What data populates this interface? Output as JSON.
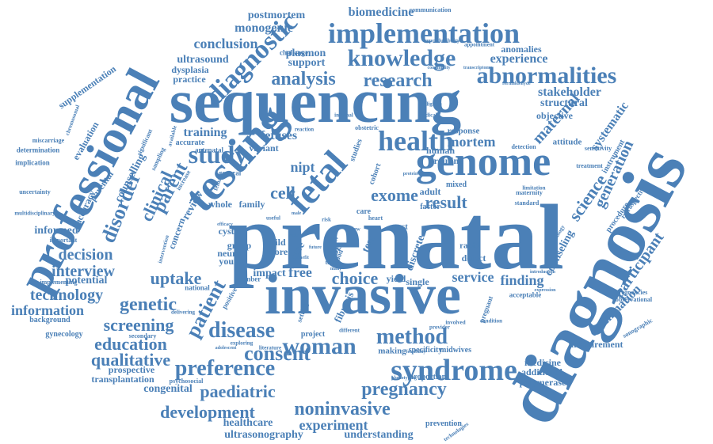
{
  "color": "#4b80b7",
  "words": [
    {
      "text": "prenatal",
      "weight": 1.0,
      "orientation": "horizontal"
    },
    {
      "text": "diagnosis",
      "weight": 0.95,
      "orientation": "rotated"
    },
    {
      "text": "sequencing",
      "weight": 0.72,
      "orientation": "horizontal"
    },
    {
      "text": "invasive",
      "weight": 0.65,
      "orientation": "horizontal"
    },
    {
      "text": "professional",
      "weight": 0.6,
      "orientation": "rotated"
    },
    {
      "text": "testing",
      "weight": 0.48,
      "orientation": "rotated"
    },
    {
      "text": "genome",
      "weight": 0.44,
      "orientation": "horizontal"
    },
    {
      "text": "fetal",
      "weight": 0.4,
      "orientation": "rotated"
    },
    {
      "text": "implementation",
      "weight": 0.32,
      "orientation": "horizontal"
    },
    {
      "text": "syndrome",
      "weight": 0.32,
      "orientation": "horizontal"
    },
    {
      "text": "diagnostic",
      "weight": 0.3,
      "orientation": "rotated"
    },
    {
      "text": "health",
      "weight": 0.3,
      "orientation": "horizontal"
    },
    {
      "text": "abnormalities",
      "weight": 0.27,
      "orientation": "horizontal"
    },
    {
      "text": "knowledge",
      "weight": 0.27,
      "orientation": "horizontal"
    },
    {
      "text": "woman",
      "weight": 0.27,
      "orientation": "horizontal"
    },
    {
      "text": "study",
      "weight": 0.26,
      "orientation": "horizontal"
    },
    {
      "text": "preference",
      "weight": 0.26,
      "orientation": "horizontal"
    },
    {
      "text": "disease",
      "weight": 0.24,
      "orientation": "horizontal"
    },
    {
      "text": "method",
      "weight": 0.24,
      "orientation": "horizontal"
    },
    {
      "text": "consent",
      "weight": 0.24,
      "orientation": "horizontal"
    },
    {
      "text": "analysis",
      "weight": 0.24,
      "orientation": "horizontal"
    },
    {
      "text": "research",
      "weight": 0.22,
      "orientation": "horizontal"
    },
    {
      "text": "pregnancy",
      "weight": 0.22,
      "orientation": "horizontal"
    },
    {
      "text": "noninvasive",
      "weight": 0.22,
      "orientation": "horizontal"
    },
    {
      "text": "disorder",
      "weight": 0.22,
      "orientation": "rotated"
    },
    {
      "text": "patient",
      "weight": 0.22,
      "orientation": "rotated"
    },
    {
      "text": "screening",
      "weight": 0.21,
      "orientation": "horizontal"
    },
    {
      "text": "genetic",
      "weight": 0.21,
      "orientation": "horizontal"
    },
    {
      "text": "education",
      "weight": 0.19,
      "orientation": "horizontal"
    },
    {
      "text": "qualitative",
      "weight": 0.19,
      "orientation": "horizontal"
    },
    {
      "text": "development",
      "weight": 0.19,
      "orientation": "horizontal"
    },
    {
      "text": "paediatric",
      "weight": 0.19,
      "orientation": "horizontal"
    },
    {
      "text": "parent",
      "weight": 0.2,
      "orientation": "rotated"
    },
    {
      "text": "clinical",
      "weight": 0.18,
      "orientation": "rotated"
    },
    {
      "text": "maternal",
      "weight": 0.18,
      "orientation": "rotated"
    },
    {
      "text": "cell",
      "weight": 0.2,
      "orientation": "horizontal"
    },
    {
      "text": "result",
      "weight": 0.18,
      "orientation": "horizontal"
    },
    {
      "text": "exome",
      "weight": 0.18,
      "orientation": "horizontal"
    },
    {
      "text": "uptake",
      "weight": 0.17,
      "orientation": "horizontal"
    },
    {
      "text": "choice",
      "weight": 0.17,
      "orientation": "horizontal"
    },
    {
      "text": "science",
      "weight": 0.17,
      "orientation": "rotated"
    },
    {
      "text": "participant",
      "weight": 0.17,
      "orientation": "rotated"
    },
    {
      "text": "generation",
      "weight": 0.16,
      "orientation": "rotated"
    },
    {
      "text": "interview",
      "weight": 0.16,
      "orientation": "horizontal"
    },
    {
      "text": "decision",
      "weight": 0.16,
      "orientation": "horizontal"
    },
    {
      "text": "technology",
      "weight": 0.16,
      "orientation": "horizontal"
    },
    {
      "text": "information",
      "weight": 0.15,
      "orientation": "horizontal"
    },
    {
      "text": "experiment",
      "weight": 0.15,
      "orientation": "horizontal"
    },
    {
      "text": "service",
      "weight": 0.15,
      "orientation": "horizontal"
    },
    {
      "text": "mortem",
      "weight": 0.15,
      "orientation": "horizontal"
    },
    {
      "text": "stakeholder",
      "weight": 0.13,
      "orientation": "horizontal"
    },
    {
      "text": "conclusion",
      "weight": 0.14,
      "orientation": "horizontal"
    },
    {
      "text": "experience",
      "weight": 0.14,
      "orientation": "horizontal"
    },
    {
      "text": "biomedicine",
      "weight": 0.13,
      "orientation": "horizontal"
    },
    {
      "text": "monogenic",
      "weight": 0.13,
      "orientation": "horizontal"
    },
    {
      "text": "fetuses",
      "weight": 0.13,
      "orientation": "horizontal"
    },
    {
      "text": "nipt",
      "weight": 0.13,
      "orientation": "horizontal"
    },
    {
      "text": "free",
      "weight": 0.14,
      "orientation": "horizontal"
    },
    {
      "text": "finding",
      "weight": 0.13,
      "orientation": "horizontal"
    },
    {
      "text": "impact",
      "weight": 0.11,
      "orientation": "horizontal"
    },
    {
      "text": "examination",
      "weight": 0.12,
      "orientation": "rotated"
    },
    {
      "text": "systematic",
      "weight": 0.12,
      "orientation": "rotated"
    },
    {
      "text": "structural",
      "weight": 0.11,
      "orientation": "horizontal"
    },
    {
      "text": "training",
      "weight": 0.11,
      "orientation": "horizontal"
    },
    {
      "text": "understanding",
      "weight": 0.11,
      "orientation": "horizontal"
    },
    {
      "text": "congenital",
      "weight": 0.1,
      "orientation": "horizontal"
    },
    {
      "text": "healthcare",
      "weight": 0.1,
      "orientation": "horizontal"
    },
    {
      "text": "ultrasonography",
      "weight": 0.1,
      "orientation": "horizontal"
    },
    {
      "text": "postmortem",
      "weight": 0.1,
      "orientation": "horizontal"
    },
    {
      "text": "ultrasound",
      "weight": 0.1,
      "orientation": "horizontal"
    },
    {
      "text": "medicine",
      "weight": 0.09,
      "orientation": "horizontal"
    },
    {
      "text": "additional",
      "weight": 0.09,
      "orientation": "horizontal"
    },
    {
      "text": "polymerase",
      "weight": 0.09,
      "orientation": "horizontal"
    },
    {
      "text": "measurement",
      "weight": 0.09,
      "orientation": "horizontal"
    },
    {
      "text": "prospective",
      "weight": 0.08,
      "orientation": "horizontal"
    },
    {
      "text": "transplantation",
      "weight": 0.08,
      "orientation": "horizontal"
    },
    {
      "text": "gynecology",
      "weight": 0.07,
      "orientation": "horizontal"
    },
    {
      "text": "background",
      "weight": 0.07,
      "orientation": "horizontal"
    },
    {
      "text": "supplementation",
      "weight": 0.08,
      "orientation": "rotated"
    },
    {
      "text": "counselling",
      "weight": 0.09,
      "orientation": "rotated"
    },
    {
      "text": "counseling",
      "weight": 0.09,
      "orientation": "rotated"
    },
    {
      "text": "anomalies",
      "weight": 0.09,
      "orientation": "horizontal"
    },
    {
      "text": "plasmon",
      "weight": 0.09,
      "orientation": "horizontal"
    },
    {
      "text": "support",
      "weight": 0.09,
      "orientation": "horizontal"
    },
    {
      "text": "dysplasia",
      "weight": 0.08,
      "orientation": "horizontal"
    },
    {
      "text": "practice",
      "weight": 0.08,
      "orientation": "horizontal"
    },
    {
      "text": "informed",
      "weight": 0.1,
      "orientation": "horizontal"
    },
    {
      "text": "potential",
      "weight": 0.1,
      "orientation": "horizontal"
    },
    {
      "text": "accurate",
      "weight": 0.07,
      "orientation": "horizontal"
    },
    {
      "text": "variant",
      "weight": 0.08,
      "orientation": "horizontal"
    },
    {
      "text": "human",
      "weight": 0.08,
      "orientation": "horizontal"
    },
    {
      "text": "routine",
      "weight": 0.08,
      "orientation": "horizontal"
    },
    {
      "text": "objective",
      "weight": 0.08,
      "orientation": "horizontal"
    },
    {
      "text": "attitude",
      "weight": 0.07,
      "orientation": "horizontal"
    },
    {
      "text": "response",
      "weight": 0.07,
      "orientation": "horizontal"
    },
    {
      "text": "cystic",
      "weight": 0.08,
      "orientation": "horizontal"
    },
    {
      "text": "review",
      "weight": 0.09,
      "orientation": "rotated"
    },
    {
      "text": "whole",
      "weight": 0.08,
      "orientation": "horizontal"
    },
    {
      "text": "neural",
      "weight": 0.08,
      "orientation": "horizontal"
    },
    {
      "text": "young",
      "weight": 0.08,
      "orientation": "horizontal"
    },
    {
      "text": "discrete",
      "weight": 0.09,
      "orientation": "rotated"
    },
    {
      "text": "fibrosis",
      "weight": 0.08,
      "orientation": "rotated"
    },
    {
      "text": "making",
      "weight": 0.07,
      "orientation": "horizontal"
    },
    {
      "text": "specificity",
      "weight": 0.06,
      "orientation": "horizontal"
    },
    {
      "text": "midwives",
      "weight": 0.06,
      "orientation": "horizontal"
    },
    {
      "text": "proportion",
      "weight": 0.06,
      "orientation": "horizontal"
    },
    {
      "text": "prevention",
      "weight": 0.06,
      "orientation": "horizontal"
    },
    {
      "text": "project",
      "weight": 0.06,
      "orientation": "horizontal"
    },
    {
      "text": "single",
      "weight": 0.07,
      "orientation": "horizontal"
    },
    {
      "text": "adult",
      "weight": 0.08,
      "orientation": "horizontal"
    },
    {
      "text": "mixed",
      "weight": 0.06,
      "orientation": "horizontal"
    },
    {
      "text": "rapid",
      "weight": 0.06,
      "orientation": "horizontal"
    },
    {
      "text": "defect",
      "weight": 0.07,
      "orientation": "horizontal"
    },
    {
      "text": "post",
      "weight": 0.06,
      "orientation": "horizontal"
    },
    {
      "text": "factor",
      "weight": 0.06,
      "orientation": "horizontal"
    },
    {
      "text": "care",
      "weight": 0.06,
      "orientation": "horizontal"
    },
    {
      "text": "case",
      "weight": 0.08,
      "orientation": "rotated"
    },
    {
      "text": "tube",
      "weight": 0.08,
      "orientation": "rotated"
    },
    {
      "text": "child",
      "weight": 0.07,
      "orientation": "horizontal"
    },
    {
      "text": "more",
      "weight": 0.07,
      "orientation": "horizontal"
    },
    {
      "text": "group",
      "weight": 0.07,
      "orientation": "horizontal"
    },
    {
      "text": "family",
      "weight": 0.07,
      "orientation": "horizontal"
    },
    {
      "text": "yield",
      "weight": 0.07,
      "orientation": "horizontal"
    },
    {
      "text": "general",
      "weight": 0.06,
      "orientation": "horizontal"
    },
    {
      "text": "national",
      "weight": 0.05,
      "orientation": "horizontal"
    },
    {
      "text": "number",
      "weight": 0.05,
      "orientation": "horizontal"
    },
    {
      "text": "secondary",
      "weight": 0.05,
      "orientation": "horizontal"
    },
    {
      "text": "psychosocial",
      "weight": 0.05,
      "orientation": "horizontal"
    },
    {
      "text": "important",
      "weight": 0.05,
      "orientation": "horizontal"
    },
    {
      "text": "implementing",
      "weight": 0.05,
      "orientation": "horizontal"
    },
    {
      "text": "uncertainty",
      "weight": 0.05,
      "orientation": "horizontal"
    },
    {
      "text": "multidisciplinary",
      "weight": 0.04,
      "orientation": "horizontal"
    },
    {
      "text": "implication",
      "weight": 0.06,
      "orientation": "horizontal"
    },
    {
      "text": "determination",
      "weight": 0.06,
      "orientation": "horizontal"
    },
    {
      "text": "miscarriage",
      "weight": 0.05,
      "orientation": "horizontal"
    },
    {
      "text": "evaluation",
      "weight": 0.07,
      "orientation": "rotated"
    },
    {
      "text": "accuracy",
      "weight": 0.07,
      "orientation": "rotated"
    },
    {
      "text": "parental",
      "weight": 0.07,
      "orientation": "rotated"
    },
    {
      "text": "concern",
      "weight": 0.07,
      "orientation": "rotated"
    },
    {
      "text": "communication",
      "weight": 0.05,
      "orientation": "horizontal"
    },
    {
      "text": "reproducibility",
      "weight": 0.04,
      "orientation": "horizontal"
    },
    {
      "text": "challenge",
      "weight": 0.05,
      "orientation": "horizontal"
    },
    {
      "text": "appointment",
      "weight": 0.04,
      "orientation": "horizontal"
    },
    {
      "text": "community",
      "weight": 0.04,
      "orientation": "horizontal"
    },
    {
      "text": "transcriptome",
      "weight": 0.04,
      "orientation": "horizontal"
    },
    {
      "text": "formaldehyde",
      "weight": 0.04,
      "orientation": "horizontal"
    },
    {
      "text": "detection",
      "weight": 0.05,
      "orientation": "horizontal"
    },
    {
      "text": "sensitivity",
      "weight": 0.05,
      "orientation": "horizontal"
    },
    {
      "text": "treatment",
      "weight": 0.05,
      "orientation": "horizontal"
    },
    {
      "text": "instrument",
      "weight": 0.05,
      "orientation": "rotated"
    },
    {
      "text": "procedure",
      "weight": 0.05,
      "orientation": "rotated"
    },
    {
      "text": "retrospective",
      "weight": 0.05,
      "orientation": "rotated"
    },
    {
      "text": "limitation",
      "weight": 0.04,
      "orientation": "horizontal"
    },
    {
      "text": "maternity",
      "weight": 0.04,
      "orientation": "horizontal"
    },
    {
      "text": "standard",
      "weight": 0.04,
      "orientation": "horizontal"
    },
    {
      "text": "pathology",
      "weight": 0.04,
      "orientation": "horizontal"
    },
    {
      "text": "pregnant",
      "weight": 0.04,
      "orientation": "rotated"
    },
    {
      "text": "acceptable",
      "weight": 0.04,
      "orientation": "horizontal"
    },
    {
      "text": "condition",
      "weight": 0.04,
      "orientation": "horizontal"
    },
    {
      "text": "involved",
      "weight": 0.04,
      "orientation": "horizontal"
    },
    {
      "text": "provider",
      "weight": 0.04,
      "orientation": "horizontal"
    },
    {
      "text": "technologies",
      "weight": 0.04,
      "orientation": "horizontal"
    },
    {
      "text": "observational",
      "weight": 0.04,
      "orientation": "horizontal"
    },
    {
      "text": "sonographic",
      "weight": 0.04,
      "orientation": "horizontal"
    },
    {
      "text": "pregnancies",
      "weight": 0.04,
      "orientation": "horizontal"
    },
    {
      "text": "expression",
      "weight": 0.04,
      "orientation": "horizontal"
    },
    {
      "text": "introduction",
      "weight": 0.04,
      "orientation": "horizontal"
    },
    {
      "text": "feasibility",
      "weight": 0.04,
      "orientation": "horizontal"
    },
    {
      "text": "phenotyping",
      "weight": 0.04,
      "orientation": "horizontal"
    },
    {
      "text": "different",
      "weight": 0.04,
      "orientation": "horizontal"
    },
    {
      "text": "literature",
      "weight": 0.04,
      "orientation": "horizontal"
    },
    {
      "text": "exploring",
      "weight": 0.04,
      "orientation": "horizontal"
    },
    {
      "text": "adolescent",
      "weight": 0.04,
      "orientation": "horizontal"
    },
    {
      "text": "delivering",
      "weight": 0.04,
      "orientation": "horizontal"
    },
    {
      "text": "positive",
      "weight": 0.04,
      "orientation": "rotated"
    },
    {
      "text": "intervention",
      "weight": 0.04,
      "orientation": "rotated"
    },
    {
      "text": "religious",
      "weight": 0.04,
      "orientation": "horizontal"
    },
    {
      "text": "medical",
      "weight": 0.04,
      "orientation": "horizontal"
    },
    {
      "text": "internal",
      "weight": 0.04,
      "orientation": "horizontal"
    },
    {
      "text": "obstetric",
      "weight": 0.04,
      "orientation": "horizontal"
    },
    {
      "text": "reaction",
      "weight": 0.04,
      "orientation": "horizontal"
    },
    {
      "text": "protein",
      "weight": 0.04,
      "orientation": "horizontal"
    },
    {
      "text": "studies",
      "weight": 0.04,
      "orientation": "rotated"
    },
    {
      "text": "sampling",
      "weight": 0.04,
      "orientation": "rotated"
    },
    {
      "text": "significant",
      "weight": 0.04,
      "orientation": "rotated"
    },
    {
      "text": "available",
      "weight": 0.04,
      "orientation": "rotated"
    },
    {
      "text": "chromosomal",
      "weight": 0.04,
      "orientation": "rotated"
    },
    {
      "text": "antenatal",
      "weight": 0.04,
      "orientation": "horizontal"
    },
    {
      "text": "increase",
      "weight": 0.04,
      "orientation": "rotated"
    },
    {
      "text": "female",
      "weight": 0.04,
      "orientation": "rotated"
    },
    {
      "text": "efficacy",
      "weight": 0.04,
      "orientation": "horizontal"
    },
    {
      "text": "useful",
      "weight": 0.04,
      "orientation": "horizontal"
    },
    {
      "text": "future",
      "weight": 0.04,
      "orientation": "horizontal"
    },
    {
      "text": "heart",
      "weight": 0.04,
      "orientation": "horizontal"
    },
    {
      "text": "risk",
      "weight": 0.04,
      "orientation": "horizontal"
    },
    {
      "text": "life",
      "weight": 0.04,
      "orientation": "horizontal"
    },
    {
      "text": "rate",
      "weight": 0.04,
      "orientation": "horizontal"
    },
    {
      "text": "male",
      "weight": 0.04,
      "orientation": "horizontal"
    },
    {
      "text": "time",
      "weight": 0.04,
      "orientation": "horizontal"
    },
    {
      "text": "many",
      "weight": 0.04,
      "orientation": "horizontal"
    },
    {
      "text": "benefit",
      "weight": 0.04,
      "orientation": "horizontal"
    },
    {
      "text": "view",
      "weight": 0.04,
      "orientation": "horizontal"
    },
    {
      "text": "setting",
      "weight": 0.04,
      "orientation": "rotated"
    },
    {
      "text": "cohort",
      "weight": 0.04,
      "orientation": "rotated"
    },
    {
      "text": "blood",
      "weight": 0.04,
      "orientation": "rotated"
    },
    {
      "text": "test",
      "weight": 0.08,
      "orientation": "rotated"
    }
  ]
}
